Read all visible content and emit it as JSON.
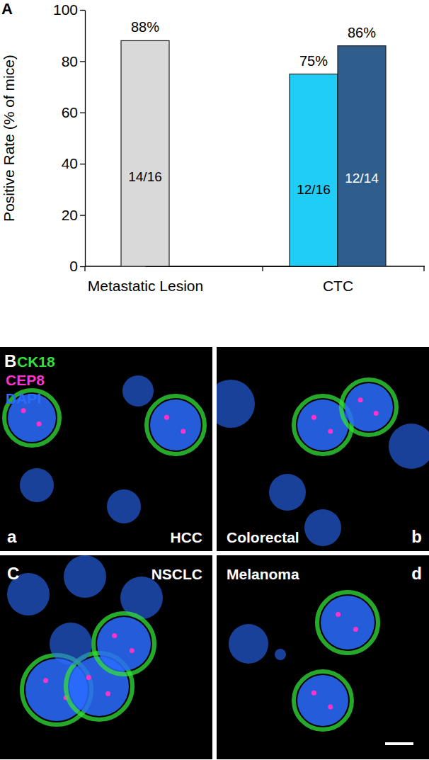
{
  "chart_data": {
    "type": "bar",
    "panel_label": "A",
    "y_label": "Positive Rate (% of mice)",
    "categories": [
      "Metastatic Lesion",
      "CTC"
    ],
    "series": [
      {
        "color": "#d9d9d9",
        "values": [
          88,
          null
        ],
        "value_labels": [
          "88%",
          null
        ],
        "inner_labels": [
          "14/16",
          null
        ]
      },
      {
        "color": "#1fcdf6",
        "values": [
          null,
          75
        ],
        "value_labels": [
          null,
          "75%"
        ],
        "inner_labels": [
          null,
          "12/16"
        ]
      },
      {
        "color": "#2f5e8c",
        "values": [
          null,
          86
        ],
        "value_labels": [
          null,
          "86%"
        ],
        "inner_labels": [
          null,
          "12/14"
        ]
      }
    ],
    "ylim": [
      0,
      100
    ],
    "yticks": [
      0,
      20,
      40,
      60,
      80,
      100
    ],
    "data_labels": true,
    "grid": false
  },
  "figure": {
    "micrographs": {
      "panel_label": "B",
      "stains": [
        {
          "name": "CK18",
          "color": "#33e03a"
        },
        {
          "name": "CEP8",
          "color": "#ff33cc"
        },
        {
          "name": "DAPI",
          "color": "#2a6cff"
        }
      ],
      "panels": [
        {
          "letter": "a",
          "title": "HCC"
        },
        {
          "letter": "b",
          "title": "Colorectal"
        },
        {
          "letter": "C",
          "title": "NSCLC"
        },
        {
          "letter": "d",
          "title": "Melanoma"
        }
      ]
    }
  }
}
